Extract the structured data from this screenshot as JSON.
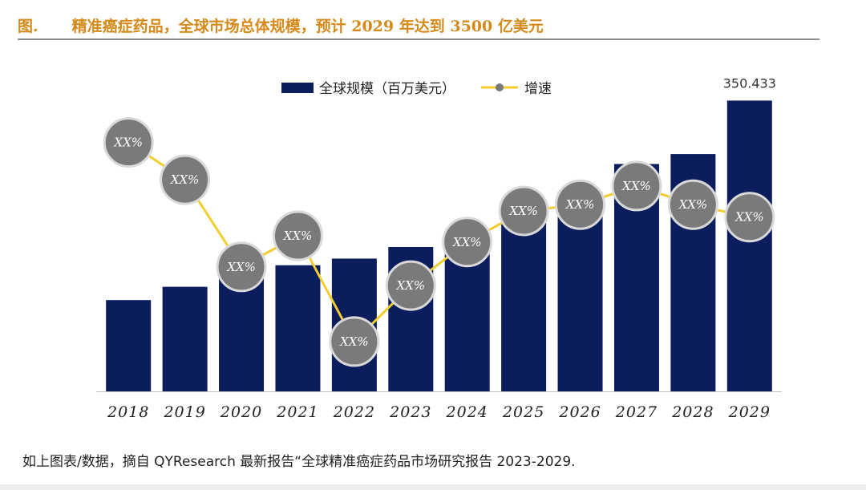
{
  "header": {
    "prefix": "图.",
    "title": "精准癌症药品，全球市场总体规模，预计 2029 年达到 3500 亿美元"
  },
  "footer": {
    "note": "如上图表/数据，摘自 QYResearch 最新报告“全球精准癌症药品市场研究报告 2023-2029."
  },
  "colors": {
    "bar": "#0c1d5e",
    "line": "#f2cd2e",
    "marker": "#7a7a7a",
    "marker_border": "#d9d9d9",
    "title": "#d58a1a"
  },
  "chart_data": {
    "type": "bar",
    "title": "精准癌症药品，全球市场总体规模，预计 2029 年达到 3500 亿美元",
    "categories": [
      "2018",
      "2019",
      "2020",
      "2021",
      "2022",
      "2023",
      "2024",
      "2025",
      "2026",
      "2027",
      "2028",
      "2029"
    ],
    "series": [
      {
        "name": "全球规模（百万美元）",
        "type": "bar",
        "values": [
          110,
          126,
          138,
          152,
          160,
          174,
          189,
          212,
          240,
          274,
          286,
          350.433
        ]
      },
      {
        "name": "增速",
        "type": "line",
        "axis": "secondary",
        "values": [
          16,
          13,
          6,
          8.5,
          0,
          4.5,
          8,
          10.5,
          11,
          12.5,
          11,
          10
        ],
        "labels": [
          "XX%",
          "XX%",
          "XX%",
          "XX%",
          "XX%",
          "XX%",
          "XX%",
          "XX%",
          "XX%",
          "XX%",
          "XX%",
          "XX%"
        ]
      }
    ],
    "data_labels": [
      {
        "category": "2029",
        "text": "350.433"
      }
    ],
    "ylim": [
      0,
      375
    ],
    "y2lim": [
      -4,
      21
    ],
    "legend": {
      "position": "top-center",
      "entries": [
        "全球规模（百万美元）",
        "增速"
      ]
    },
    "grid": false,
    "xlabel": "",
    "ylabel": ""
  }
}
